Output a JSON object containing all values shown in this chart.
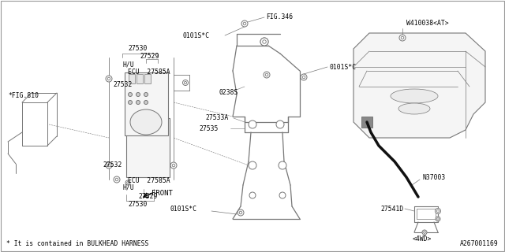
{
  "bg_color": "#ffffff",
  "line_color": "#777777",
  "dark_line": "#000000",
  "fig_id": "A267001169",
  "footnote": "* It is contained in BULKHEAD HARNESS",
  "labels": {
    "fig810": "*FIG.810",
    "fig346": "FIG.346",
    "front": "FRONT",
    "27530": "27530",
    "27529": "27529",
    "27585A": "ECU  27585A",
    "HU": "H/U",
    "27532": "27532",
    "0101SC_top": "0101S*C",
    "0101SC_mid": "0101S*C",
    "0101SC_bot": "0101S*C",
    "0238S": "0238S",
    "27535": "27535",
    "27533A": "27533A",
    "W410038": "W410038<AT>",
    "N37003": "N37003",
    "27541D": "27541D",
    "4WD": "<4WD>"
  },
  "font_size": 6.5,
  "small_font": 5.8
}
